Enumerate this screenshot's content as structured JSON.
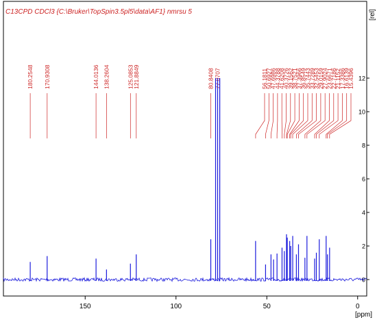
{
  "header": {
    "title": "C13CPD CDCl3 {C:\\Bruker\\TopSpin3.5pl5\\data\\AF1} nmrsu 5"
  },
  "chart_data": {
    "type": "line",
    "title": "C13CPD CDCl3 {C:\\Bruker\\TopSpin3.5pl5\\data\\AF1} nmrsu 5",
    "xlabel": "[ppm]",
    "ylabel": "[rel]",
    "xlim": [
      195,
      -5
    ],
    "ylim": [
      -0.5,
      12
    ],
    "x_ticks": [
      150,
      100,
      50,
      0
    ],
    "y_ticks": [
      0,
      2,
      4,
      6,
      8,
      10,
      12
    ],
    "x_tick_labels": [
      "150",
      "100",
      "50",
      "0"
    ],
    "y_tick_labels": [
      "0",
      "2",
      "4",
      "6",
      "8",
      "10",
      "12"
    ],
    "peak_label_colors": {
      "text": "#cc2222",
      "spectrum": "#1a1adc"
    },
    "peak_groups": [
      {
        "labels": [
          "180.2548"
        ]
      },
      {
        "labels": [
          "170.9308"
        ]
      },
      {
        "labels": [
          "144.0136"
        ]
      },
      {
        "labels": [
          "138.2604"
        ]
      },
      {
        "labels": [
          "125.0853"
        ]
      },
      {
        "labels": [
          "121.8849"
        ]
      },
      {
        "labels": [
          "80.8408"
        ]
      },
      {
        "labels": [
          "77.0707"
        ]
      },
      {
        "labels": [
          "56.1811",
          "50.6927",
          "47.6986",
          "44.3788",
          "41.6208",
          "40.3726",
          "39.1562",
          "38.7521",
          "37.3966",
          "36.8549",
          "35.7443",
          "33.7289",
          "32.5453",
          "29.0159",
          "27.9024",
          "23.6671",
          "22.7186",
          "21.1152",
          "17.3386",
          "16.6139",
          "15.4396"
        ]
      }
    ],
    "series": [
      {
        "peaks": [
          {
            "x": 180.25,
            "y": 1.05
          },
          {
            "x": 170.93,
            "y": 1.4
          },
          {
            "x": 144.01,
            "y": 1.25
          },
          {
            "x": 138.26,
            "y": 0.6
          },
          {
            "x": 125.09,
            "y": 0.95
          },
          {
            "x": 121.88,
            "y": 1.5
          },
          {
            "x": 80.84,
            "y": 2.4
          },
          {
            "x": 78.2,
            "y": 12.0
          },
          {
            "x": 77.07,
            "y": 12.0
          },
          {
            "x": 75.9,
            "y": 12.0
          },
          {
            "x": 56.18,
            "y": 2.3
          },
          {
            "x": 50.69,
            "y": 0.9
          },
          {
            "x": 47.7,
            "y": 1.5
          },
          {
            "x": 46.3,
            "y": 1.2
          },
          {
            "x": 44.38,
            "y": 1.55
          },
          {
            "x": 41.62,
            "y": 1.9
          },
          {
            "x": 40.37,
            "y": 1.7
          },
          {
            "x": 39.16,
            "y": 2.7
          },
          {
            "x": 38.75,
            "y": 2.5
          },
          {
            "x": 37.4,
            "y": 2.3
          },
          {
            "x": 36.85,
            "y": 2.0
          },
          {
            "x": 35.74,
            "y": 2.6
          },
          {
            "x": 33.73,
            "y": 1.5
          },
          {
            "x": 32.55,
            "y": 2.1
          },
          {
            "x": 29.02,
            "y": 1.3
          },
          {
            "x": 27.9,
            "y": 2.6
          },
          {
            "x": 23.67,
            "y": 1.25
          },
          {
            "x": 22.72,
            "y": 1.6
          },
          {
            "x": 21.12,
            "y": 2.4
          },
          {
            "x": 17.34,
            "y": 2.6
          },
          {
            "x": 16.61,
            "y": 1.5
          },
          {
            "x": 15.44,
            "y": 1.9
          }
        ]
      }
    ]
  }
}
